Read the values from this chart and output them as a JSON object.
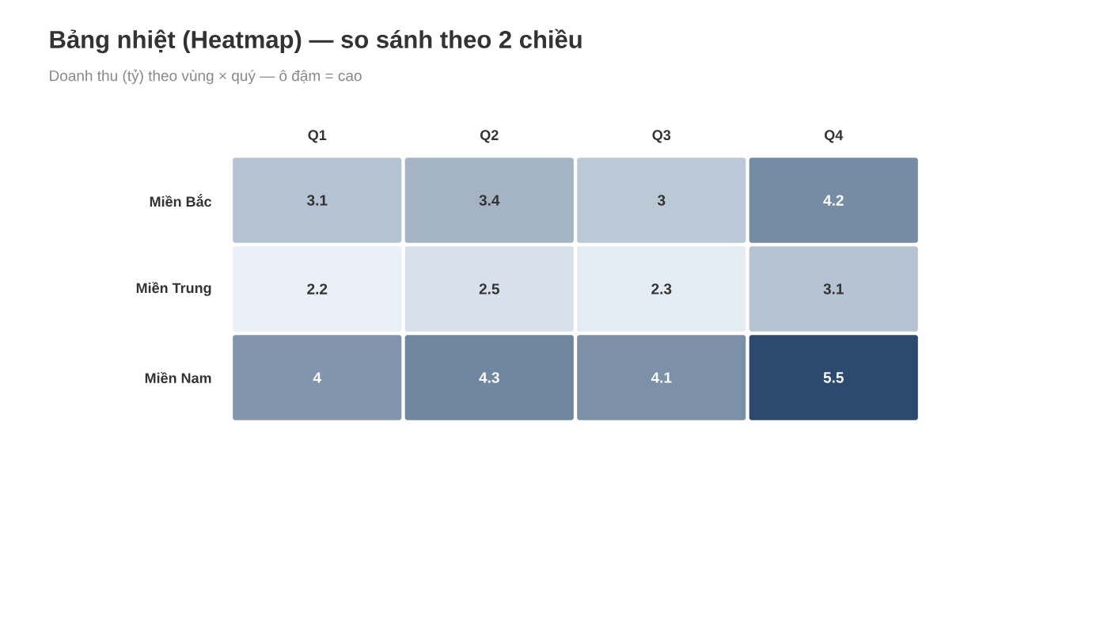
{
  "chart_data": {
    "type": "heatmap",
    "title": "Bảng nhiệt (Heatmap) — so sánh theo 2 chiều",
    "subtitle": "Doanh thu (tỷ) theo vùng × quý — ô đậm = cao",
    "categories": [
      "Q1",
      "Q2",
      "Q3",
      "Q4"
    ],
    "y_categories": [
      "Miền Bắc",
      "Miền Trung",
      "Miền Nam"
    ],
    "cells": [
      [
        3.1,
        3.4,
        3,
        4.2
      ],
      [
        2.2,
        2.5,
        2.3,
        3.1
      ],
      [
        4,
        4.3,
        4.1,
        5.5
      ]
    ],
    "data_labels": true
  }
}
